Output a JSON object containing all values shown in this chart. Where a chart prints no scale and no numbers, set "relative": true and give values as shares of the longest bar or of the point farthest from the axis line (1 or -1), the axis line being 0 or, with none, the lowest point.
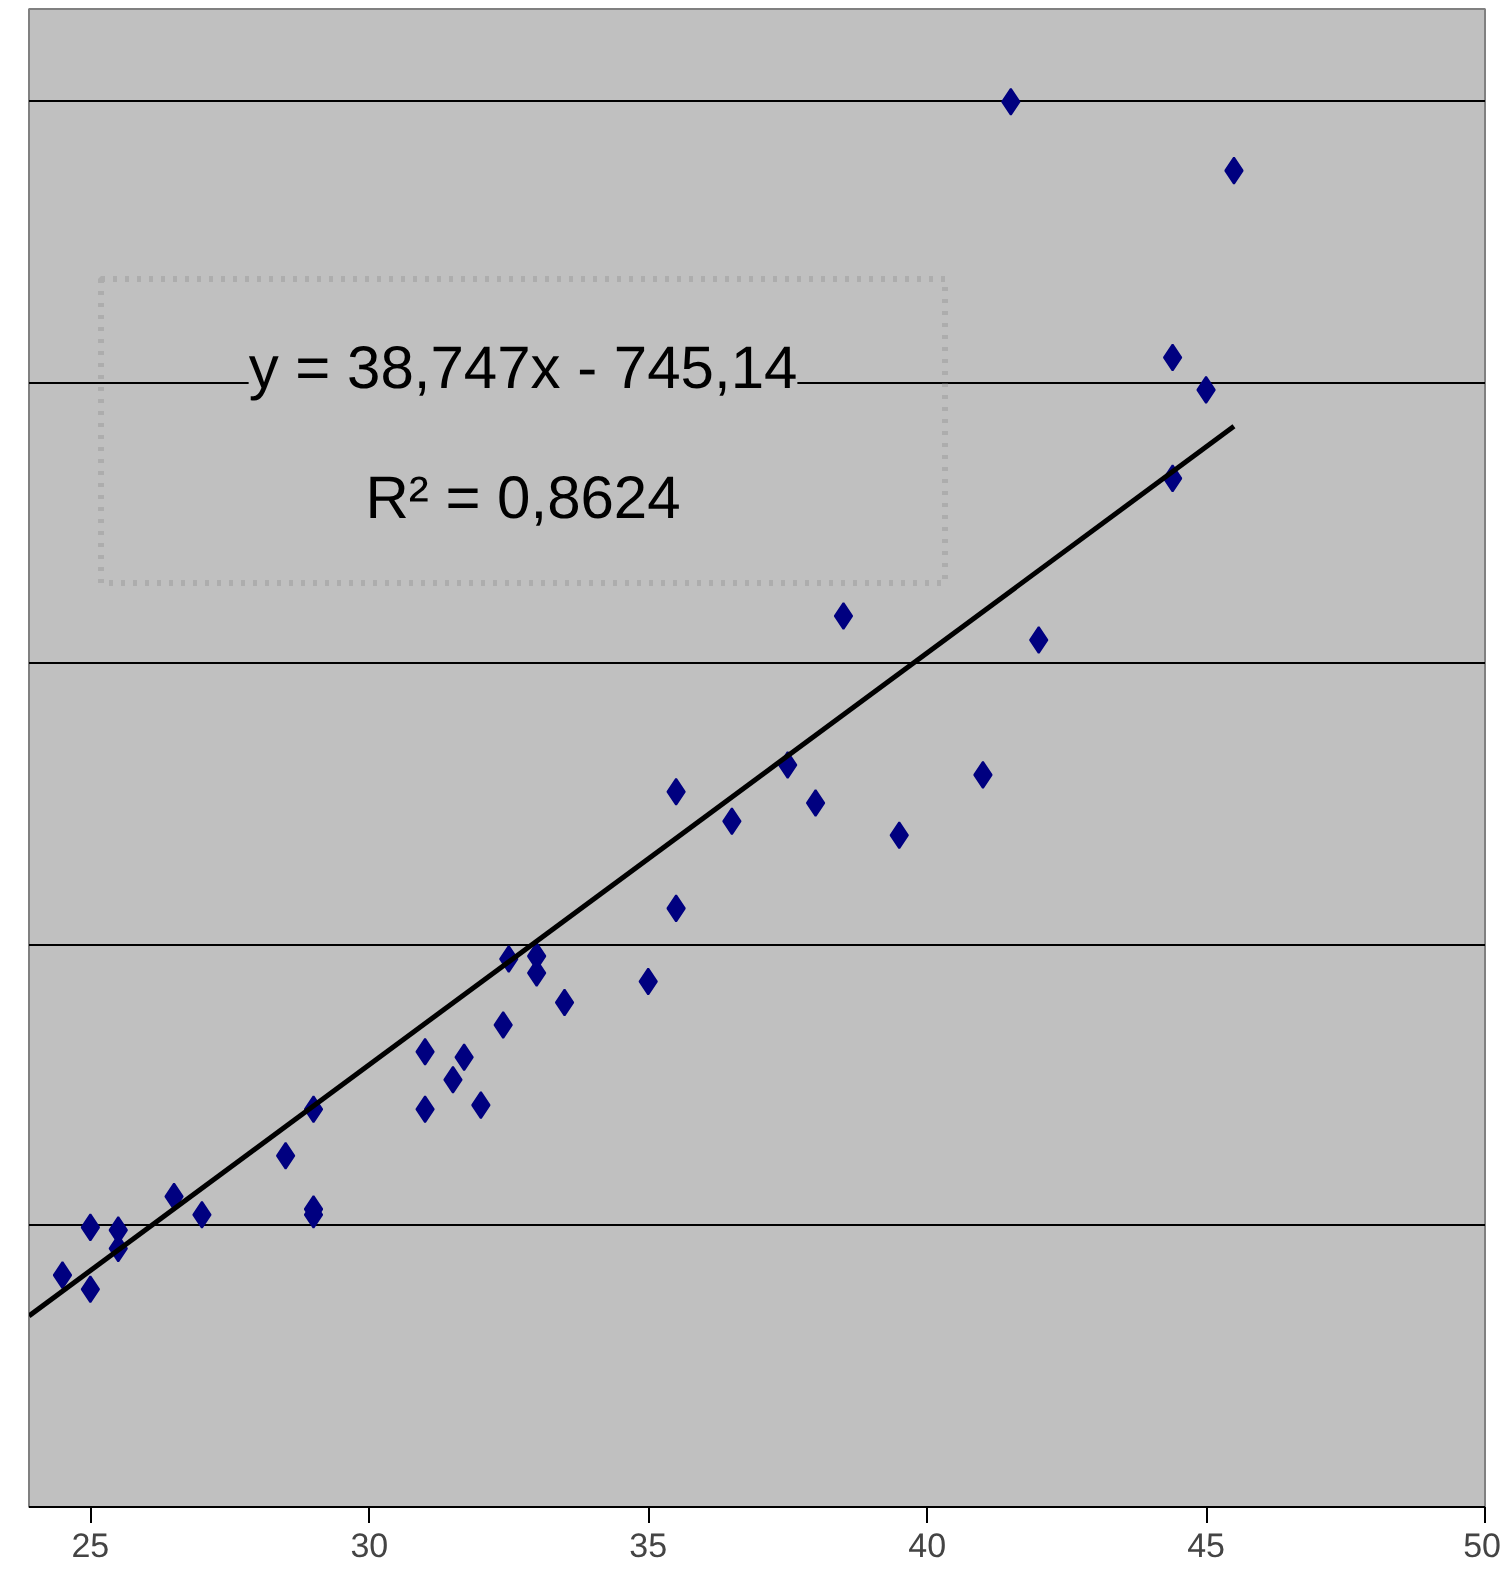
{
  "chart_data": {
    "type": "scatter",
    "relative": true,
    "xlim": [
      23.9,
      50
    ],
    "xticks": [
      25,
      30,
      35,
      40,
      45,
      50
    ],
    "grid": "y",
    "marker": "diamond",
    "annotations": [
      "y = 38,747x - 745,14",
      "R² = 0,8624"
    ],
    "series": [
      {
        "color": "#000080",
        "x": [
          24.5,
          25.0,
          25.0,
          25.5,
          25.5,
          26.5,
          27.0,
          28.5,
          29.0,
          29.0,
          29.0,
          31.0,
          31.0,
          31.5,
          31.7,
          32.0,
          32.4,
          32.5,
          33.0,
          33.0,
          33.5,
          35.0,
          35.5,
          35.5,
          36.5,
          37.5,
          38.0,
          38.5,
          39.5,
          41.0,
          41.5,
          42.0,
          44.4,
          44.4,
          45.0,
          45.5
        ],
        "values": [
          0.165,
          0.199,
          0.155,
          0.197,
          0.184,
          0.221,
          0.208,
          0.25,
          0.283,
          0.212,
          0.208,
          0.324,
          0.283,
          0.304,
          0.32,
          0.286,
          0.343,
          0.39,
          0.392,
          0.38,
          0.359,
          0.374,
          0.426,
          0.509,
          0.488,
          0.528,
          0.501,
          0.634,
          0.478,
          0.521,
          1.0,
          0.617,
          0.732,
          0.818,
          0.795,
          0.951
        ]
      },
      {
        "type": "line",
        "color": "#000000",
        "marker": "none",
        "x": [
          23.9,
          45.5
        ],
        "values": [
          0.136,
          0.769
        ]
      }
    ]
  }
}
